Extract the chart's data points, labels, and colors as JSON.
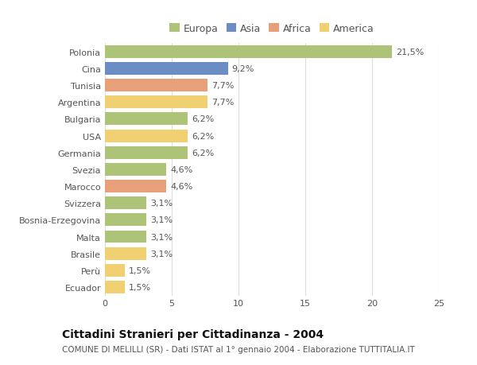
{
  "categories": [
    "Polonia",
    "Cina",
    "Tunisia",
    "Argentina",
    "Bulgaria",
    "USA",
    "Germania",
    "Svezia",
    "Marocco",
    "Svizzera",
    "Bosnia-Erzegovina",
    "Malta",
    "Brasile",
    "Perù",
    "Ecuador"
  ],
  "values": [
    21.5,
    9.2,
    7.7,
    7.7,
    6.2,
    6.2,
    6.2,
    4.6,
    4.6,
    3.1,
    3.1,
    3.1,
    3.1,
    1.5,
    1.5
  ],
  "labels": [
    "21,5%",
    "9,2%",
    "7,7%",
    "7,7%",
    "6,2%",
    "6,2%",
    "6,2%",
    "4,6%",
    "4,6%",
    "3,1%",
    "3,1%",
    "3,1%",
    "3,1%",
    "1,5%",
    "1,5%"
  ],
  "continents": [
    "Europa",
    "Asia",
    "Africa",
    "America",
    "Europa",
    "America",
    "Europa",
    "Europa",
    "Africa",
    "Europa",
    "Europa",
    "Europa",
    "America",
    "America",
    "America"
  ],
  "continent_colors": {
    "Europa": "#adc478",
    "Asia": "#6b8dc4",
    "Africa": "#e8a07a",
    "America": "#f0d070"
  },
  "legend_order": [
    "Europa",
    "Asia",
    "Africa",
    "America"
  ],
  "xlim": [
    0,
    25
  ],
  "xticks": [
    0,
    5,
    10,
    15,
    20,
    25
  ],
  "title": "Cittadini Stranieri per Cittadinanza - 2004",
  "subtitle": "COMUNE DI MELILLI (SR) - Dati ISTAT al 1° gennaio 2004 - Elaborazione TUTTITALIA.IT",
  "bg_color": "#ffffff",
  "grid_color": "#dddddd",
  "bar_height": 0.75,
  "label_fontsize": 8,
  "title_fontsize": 10,
  "subtitle_fontsize": 7.5,
  "legend_fontsize": 9,
  "tick_fontsize": 8
}
